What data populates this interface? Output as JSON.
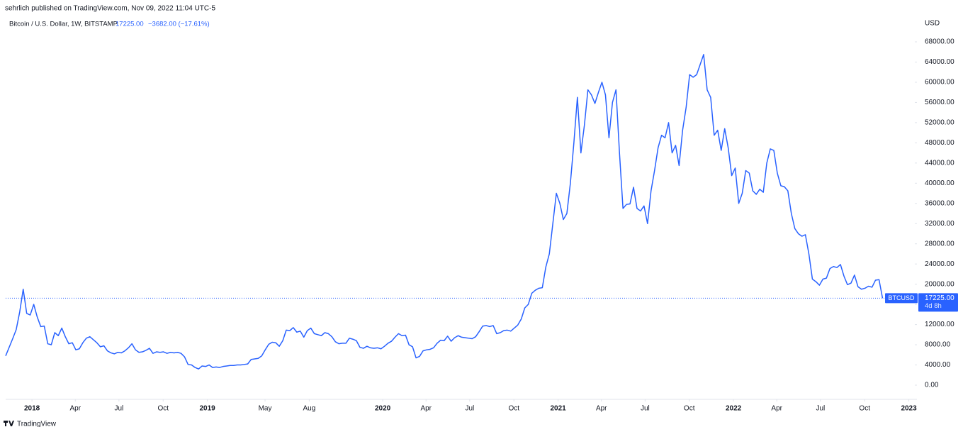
{
  "attribution": "sehrlich published on TradingView.com, Nov 09, 2022 11:04 UTC-5",
  "brand": "TradingView",
  "chart_data": {
    "type": "line",
    "symbol": "Bitcoin / U.S. Dollar, 1W, BITSTAMP",
    "last_label": "17225.00",
    "change": "−3682.00 (−17.61%)",
    "currency": "USD",
    "countdown": "4d 8h",
    "x": [
      2017.85,
      2017.87,
      2017.89,
      2017.91,
      2017.93,
      2017.95,
      2017.97,
      2017.99,
      2018.01,
      2018.03,
      2018.05,
      2018.07,
      2018.09,
      2018.11,
      2018.13,
      2018.15,
      2018.17,
      2018.19,
      2018.21,
      2018.23,
      2018.25,
      2018.27,
      2018.29,
      2018.31,
      2018.33,
      2018.35,
      2018.37,
      2018.39,
      2018.41,
      2018.43,
      2018.45,
      2018.47,
      2018.49,
      2018.51,
      2018.53,
      2018.55,
      2018.57,
      2018.59,
      2018.61,
      2018.63,
      2018.65,
      2018.67,
      2018.69,
      2018.71,
      2018.73,
      2018.75,
      2018.77,
      2018.79,
      2018.81,
      2018.83,
      2018.85,
      2018.87,
      2018.89,
      2018.91,
      2018.93,
      2018.95,
      2018.97,
      2018.99,
      2019.01,
      2019.03,
      2019.05,
      2019.07,
      2019.09,
      2019.11,
      2019.13,
      2019.15,
      2019.17,
      2019.19,
      2019.21,
      2019.23,
      2019.25,
      2019.27,
      2019.29,
      2019.31,
      2019.33,
      2019.35,
      2019.37,
      2019.39,
      2019.41,
      2019.43,
      2019.45,
      2019.47,
      2019.49,
      2019.51,
      2019.53,
      2019.55,
      2019.57,
      2019.59,
      2019.61,
      2019.63,
      2019.65,
      2019.67,
      2019.69,
      2019.71,
      2019.73,
      2019.75,
      2019.77,
      2019.79,
      2019.81,
      2019.83,
      2019.85,
      2019.87,
      2019.89,
      2019.91,
      2019.93,
      2019.95,
      2019.97,
      2019.99,
      2020.01,
      2020.03,
      2020.05,
      2020.07,
      2020.09,
      2020.11,
      2020.13,
      2020.15,
      2020.17,
      2020.19,
      2020.21,
      2020.23,
      2020.25,
      2020.27,
      2020.29,
      2020.31,
      2020.33,
      2020.35,
      2020.37,
      2020.39,
      2020.41,
      2020.43,
      2020.45,
      2020.47,
      2020.49,
      2020.51,
      2020.53,
      2020.55,
      2020.57,
      2020.59,
      2020.61,
      2020.63,
      2020.65,
      2020.67,
      2020.69,
      2020.71,
      2020.73,
      2020.75,
      2020.77,
      2020.79,
      2020.81,
      2020.83,
      2020.85,
      2020.87,
      2020.89,
      2020.91,
      2020.93,
      2020.95,
      2020.97,
      2020.99,
      2021.01,
      2021.03,
      2021.05,
      2021.07,
      2021.09,
      2021.11,
      2021.13,
      2021.15,
      2021.17,
      2021.19,
      2021.21,
      2021.23,
      2021.25,
      2021.27,
      2021.29,
      2021.31,
      2021.33,
      2021.35,
      2021.37,
      2021.39,
      2021.41,
      2021.43,
      2021.45,
      2021.47,
      2021.49,
      2021.51,
      2021.53,
      2021.55,
      2021.57,
      2021.59,
      2021.61,
      2021.63,
      2021.65,
      2021.67,
      2021.69,
      2021.71,
      2021.73,
      2021.75,
      2021.77,
      2021.79,
      2021.81,
      2021.83,
      2021.85,
      2021.87,
      2021.89,
      2021.91,
      2021.93,
      2021.95,
      2021.97,
      2021.99,
      2022.01,
      2022.03,
      2022.05,
      2022.07,
      2022.09,
      2022.11,
      2022.13,
      2022.15,
      2022.17,
      2022.19,
      2022.21,
      2022.23,
      2022.25,
      2022.27,
      2022.29,
      2022.31,
      2022.33,
      2022.35,
      2022.37,
      2022.39,
      2022.41,
      2022.43,
      2022.45,
      2022.47,
      2022.49,
      2022.51,
      2022.53,
      2022.55,
      2022.57,
      2022.59,
      2022.61,
      2022.63,
      2022.65,
      2022.67,
      2022.69,
      2022.71,
      2022.73,
      2022.75,
      2022.77,
      2022.79,
      2022.81,
      2022.83,
      2022.85
    ],
    "series": [
      {
        "name": "BTCUSD",
        "color": "#2962ff",
        "values": [
          5800,
          7500,
          9200,
          11000,
          14500,
          19000,
          14200,
          13900,
          16000,
          13500,
          11600,
          11700,
          8200,
          8000,
          10400,
          9800,
          11300,
          9600,
          8200,
          8400,
          7000,
          7200,
          8400,
          9300,
          9600,
          9000,
          8400,
          7600,
          7800,
          6800,
          6400,
          6200,
          6500,
          6400,
          6800,
          7400,
          8200,
          7000,
          6500,
          6600,
          6900,
          7300,
          6300,
          6600,
          6500,
          6600,
          6300,
          6500,
          6400,
          6500,
          6300,
          5600,
          4100,
          4000,
          3500,
          3200,
          3800,
          3700,
          4000,
          3500,
          3600,
          3500,
          3700,
          3800,
          3900,
          3900,
          4000,
          4000,
          4100,
          4200,
          5100,
          5200,
          5300,
          5800,
          7000,
          8100,
          8500,
          8400,
          7700,
          8800,
          10900,
          10800,
          11400,
          10500,
          10700,
          9500,
          10800,
          11300,
          10200,
          10000,
          9800,
          10400,
          10200,
          9600,
          8600,
          8200,
          8300,
          8300,
          9300,
          9100,
          8800,
          7500,
          7300,
          7700,
          7400,
          7300,
          7400,
          7200,
          7700,
          8300,
          8700,
          9500,
          10200,
          9800,
          9900,
          8000,
          7600,
          5400,
          5700,
          6800,
          7000,
          7100,
          7400,
          8300,
          8900,
          8800,
          9700,
          8700,
          9400,
          9800,
          9500,
          9400,
          9300,
          9200,
          9600,
          10600,
          11700,
          11800,
          11600,
          11800,
          10200,
          10400,
          10800,
          10900,
          10700,
          11300,
          11900,
          13100,
          15300,
          16000,
          18200,
          18800,
          19200,
          19300,
          23400,
          26000,
          32000,
          38000,
          36000,
          32800,
          34000,
          40000,
          48000,
          57000,
          46000,
          51500,
          58500,
          57500,
          55800,
          58000,
          60000,
          57500,
          49000,
          56000,
          58500,
          46000,
          35000,
          35800,
          35900,
          39200,
          35000,
          34500,
          35500,
          32000,
          38500,
          42500,
          47000,
          49500,
          49000,
          52000,
          46000,
          47500,
          43500,
          50500,
          55000,
          61500,
          61000,
          61500,
          63500,
          65500,
          58500,
          57000,
          49500,
          50500,
          46500,
          50800,
          47000,
          41500,
          43000,
          36000,
          38000,
          42500,
          42000,
          38500,
          37800,
          38800,
          38200,
          44000,
          46800,
          46500,
          42000,
          39500,
          39300,
          38500,
          34000,
          31000,
          30000,
          29500,
          29800,
          26000,
          21000,
          20500,
          19800,
          21000,
          21200,
          23100,
          23500,
          23300,
          23900,
          21600,
          19900,
          20200,
          21800,
          19500,
          19000,
          19200,
          19600,
          19400,
          20800,
          20900,
          17225
        ]
      }
    ],
    "xlim": [
      2017.85,
      2023.03
    ],
    "ylim": [
      -2810,
      70390
    ],
    "xticks": [
      2018,
      {
        "value": 2018.247,
        "label": "Apr"
      },
      {
        "value": 2018.496,
        "label": "Jul"
      },
      {
        "value": 2018.748,
        "label": "Oct"
      },
      2019,
      {
        "value": 2019.329,
        "label": "May"
      },
      {
        "value": 2019.581,
        "label": "Aug"
      },
      2020,
      {
        "value": 2020.247,
        "label": "Apr"
      },
      {
        "value": 2020.496,
        "label": "Jul"
      },
      {
        "value": 2020.748,
        "label": "Oct"
      },
      2021,
      {
        "value": 2021.247,
        "label": "Apr"
      },
      {
        "value": 2021.496,
        "label": "Jul"
      },
      {
        "value": 2021.748,
        "label": "Oct"
      },
      2022,
      {
        "value": 2022.247,
        "label": "Apr"
      },
      {
        "value": 2022.496,
        "label": "Jul"
      },
      {
        "value": 2022.748,
        "label": "Oct"
      },
      2023
    ],
    "yticks": [
      {
        "value": 0,
        "label": "0.00"
      },
      {
        "value": 4000,
        "label": "4000.00"
      },
      {
        "value": 8000,
        "label": "8000.00"
      },
      {
        "value": 12000,
        "label": "12000.00"
      },
      {
        "value": 16000,
        "label": "16000.00"
      },
      {
        "value": 20000,
        "label": "20000.00"
      },
      {
        "value": 24000,
        "label": "24000.00"
      },
      {
        "value": 28000,
        "label": "28000.00"
      },
      {
        "value": 32000,
        "label": "32000.00"
      },
      {
        "value": 36000,
        "label": "36000.00"
      },
      {
        "value": 40000,
        "label": "40000.00"
      },
      {
        "value": 44000,
        "label": "44000.00"
      },
      {
        "value": 48000,
        "label": "48000.00"
      },
      {
        "value": 52000,
        "label": "52000.00"
      },
      {
        "value": 56000,
        "label": "56000.00"
      },
      {
        "value": 60000,
        "label": "60000.00"
      },
      {
        "value": 64000,
        "label": "64000.00"
      },
      {
        "value": 68000,
        "label": "68000.00"
      }
    ],
    "grid": false
  }
}
